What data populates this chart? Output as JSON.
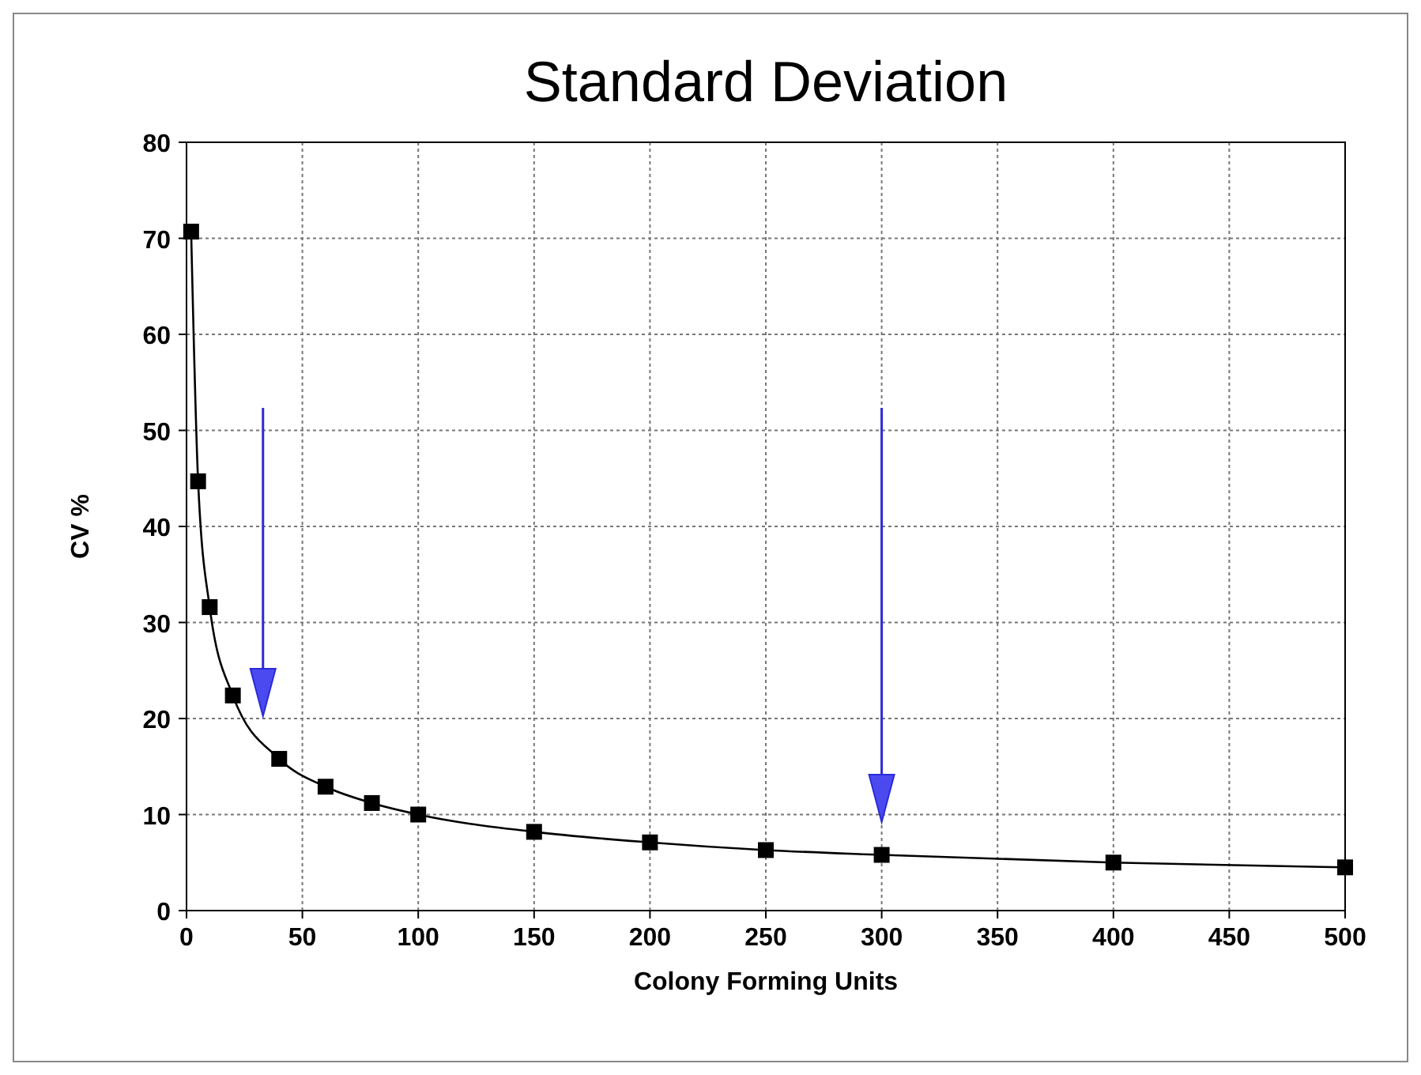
{
  "chart_data": {
    "type": "line",
    "title": "Standard Deviation",
    "xlabel": "Colony Forming Units",
    "ylabel": "CV %",
    "x": [
      2,
      5,
      10,
      20,
      40,
      60,
      80,
      100,
      150,
      200,
      250,
      300,
      400,
      500
    ],
    "series": [
      {
        "color": "#000000",
        "values": [
          70.7,
          44.7,
          31.6,
          22.4,
          15.8,
          12.9,
          11.2,
          10,
          8.2,
          7.1,
          6.3,
          5.8,
          5,
          4.5
        ]
      }
    ],
    "xlim": [
      0,
      500
    ],
    "xticks": [
      0,
      50,
      100,
      150,
      200,
      250,
      300,
      350,
      400,
      450,
      500
    ],
    "ylim": [
      0,
      80
    ],
    "yticks": [
      0,
      10,
      20,
      30,
      40,
      50,
      60,
      70,
      80
    ],
    "grid": true,
    "marker": "square",
    "line_style": "solid"
  }
}
